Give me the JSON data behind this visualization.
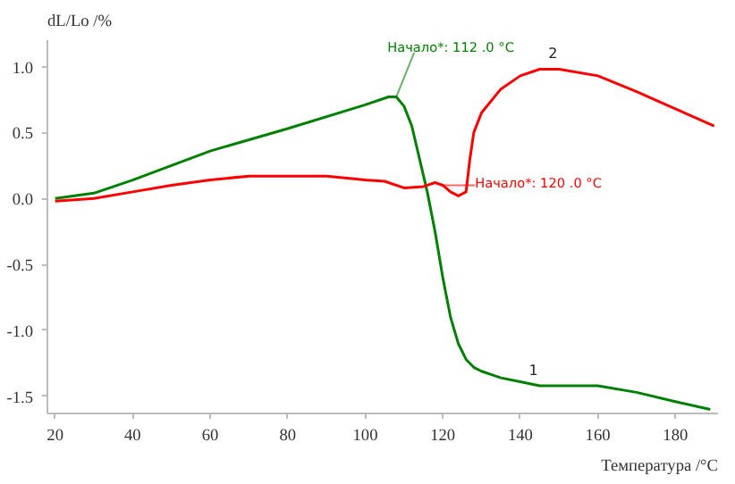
{
  "chart_data": {
    "type": "line",
    "xlabel": "Температура /°C",
    "ylabel": "dL/Lo /%",
    "xlim": [
      18,
      191
    ],
    "ylim": [
      -1.63,
      1.2
    ],
    "xticks": [
      20,
      40,
      60,
      80,
      100,
      120,
      140,
      160,
      180
    ],
    "yticks": [
      {
        "value": 1,
        "label": "1.0"
      },
      {
        "value": 0.5,
        "label": "0.5"
      },
      {
        "value": 0,
        "label": "0.0"
      },
      {
        "value": -0.5,
        "label": "-0.5"
      },
      {
        "value": -1,
        "label": "-1.0"
      },
      {
        "value": -1.5,
        "label": "-1.5"
      }
    ],
    "grid": false,
    "marker": "none",
    "line_style": "solid",
    "series": [
      {
        "name": "1",
        "color": "#008000",
        "x": [
          20,
          30,
          40,
          60,
          80,
          100,
          106,
          108,
          110,
          112,
          114,
          116,
          118,
          120,
          122,
          124,
          126,
          128,
          130,
          135,
          140,
          145,
          160,
          170,
          180,
          189
        ],
        "values": [
          0,
          0.04,
          0.14,
          0.36,
          0.53,
          0.71,
          0.77,
          0.77,
          0.7,
          0.55,
          0.3,
          0.05,
          -0.25,
          -0.6,
          -0.9,
          -1.1,
          -1.22,
          -1.28,
          -1.31,
          -1.36,
          -1.39,
          -1.42,
          -1.42,
          -1.47,
          -1.54,
          -1.6
        ]
      },
      {
        "name": "2",
        "color": "#ff0000",
        "x": [
          20,
          30,
          40,
          50,
          60,
          70,
          90,
          100,
          105,
          110,
          115,
          118,
          120,
          122,
          124,
          126,
          127,
          128,
          130,
          135,
          140,
          145,
          150,
          160,
          170,
          180,
          190
        ],
        "values": [
          -0.02,
          0,
          0.05,
          0.1,
          0.14,
          0.17,
          0.17,
          0.14,
          0.13,
          0.08,
          0.09,
          0.12,
          0.1,
          0.05,
          0.02,
          0.05,
          0.3,
          0.5,
          0.65,
          0.83,
          0.93,
          0.98,
          0.98,
          0.93,
          0.81,
          0.68,
          0.55
        ]
      }
    ],
    "annotations": [
      {
        "text": "Начало*: 112  .0 °C",
        "x": 108,
        "y": 0.77
      },
      {
        "text": "Начало*: 120  .0 °C",
        "x": 120,
        "y": 0.1
      }
    ]
  }
}
